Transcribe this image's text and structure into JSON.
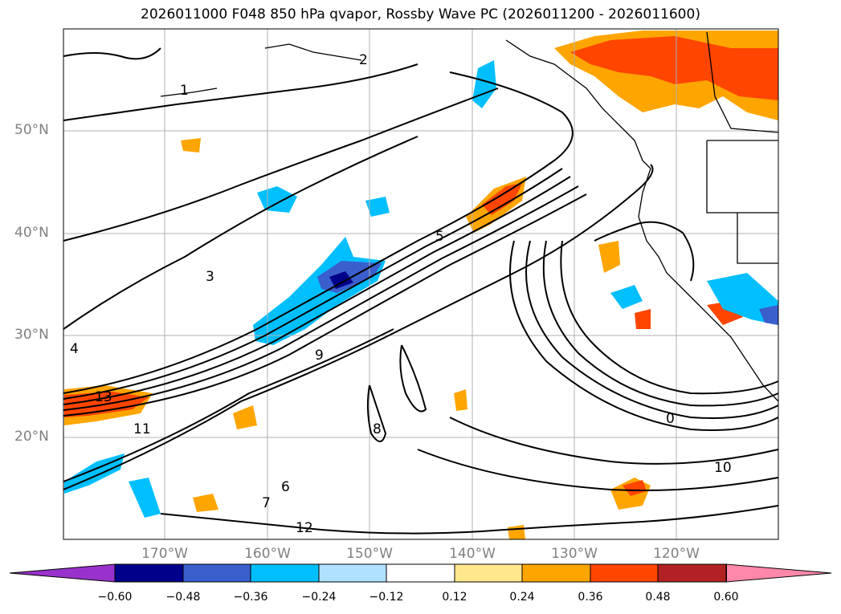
{
  "title": "2026011000 F048 850 hPa qvapor, Rossby Wave PC (2026011200 - 2026011600)",
  "lat_labels": [
    "50°N",
    "40°N",
    "30°N",
    "20°N"
  ],
  "lon_labels": [
    "170°W",
    "160°W",
    "150°W",
    "140°W",
    "130°W",
    "120°W"
  ],
  "colorbar": {
    "ticks": [
      "−0.60",
      "−0.48",
      "−0.36",
      "−0.24",
      "−0.12",
      "0.12",
      "0.24",
      "0.36",
      "0.48",
      "0.60"
    ],
    "colors": [
      "#9932cc",
      "#00008b",
      "#3a5fcd",
      "#00bfff",
      "#b0e2ff",
      "#ffffff",
      "#ffe88c",
      "#ffa500",
      "#ff4500",
      "#b22222",
      "#ff88aa"
    ]
  },
  "contour_labels": [
    "0",
    "1",
    "2",
    "3",
    "4",
    "5",
    "6",
    "7",
    "8",
    "9",
    "10",
    "11",
    "12",
    "13"
  ]
}
